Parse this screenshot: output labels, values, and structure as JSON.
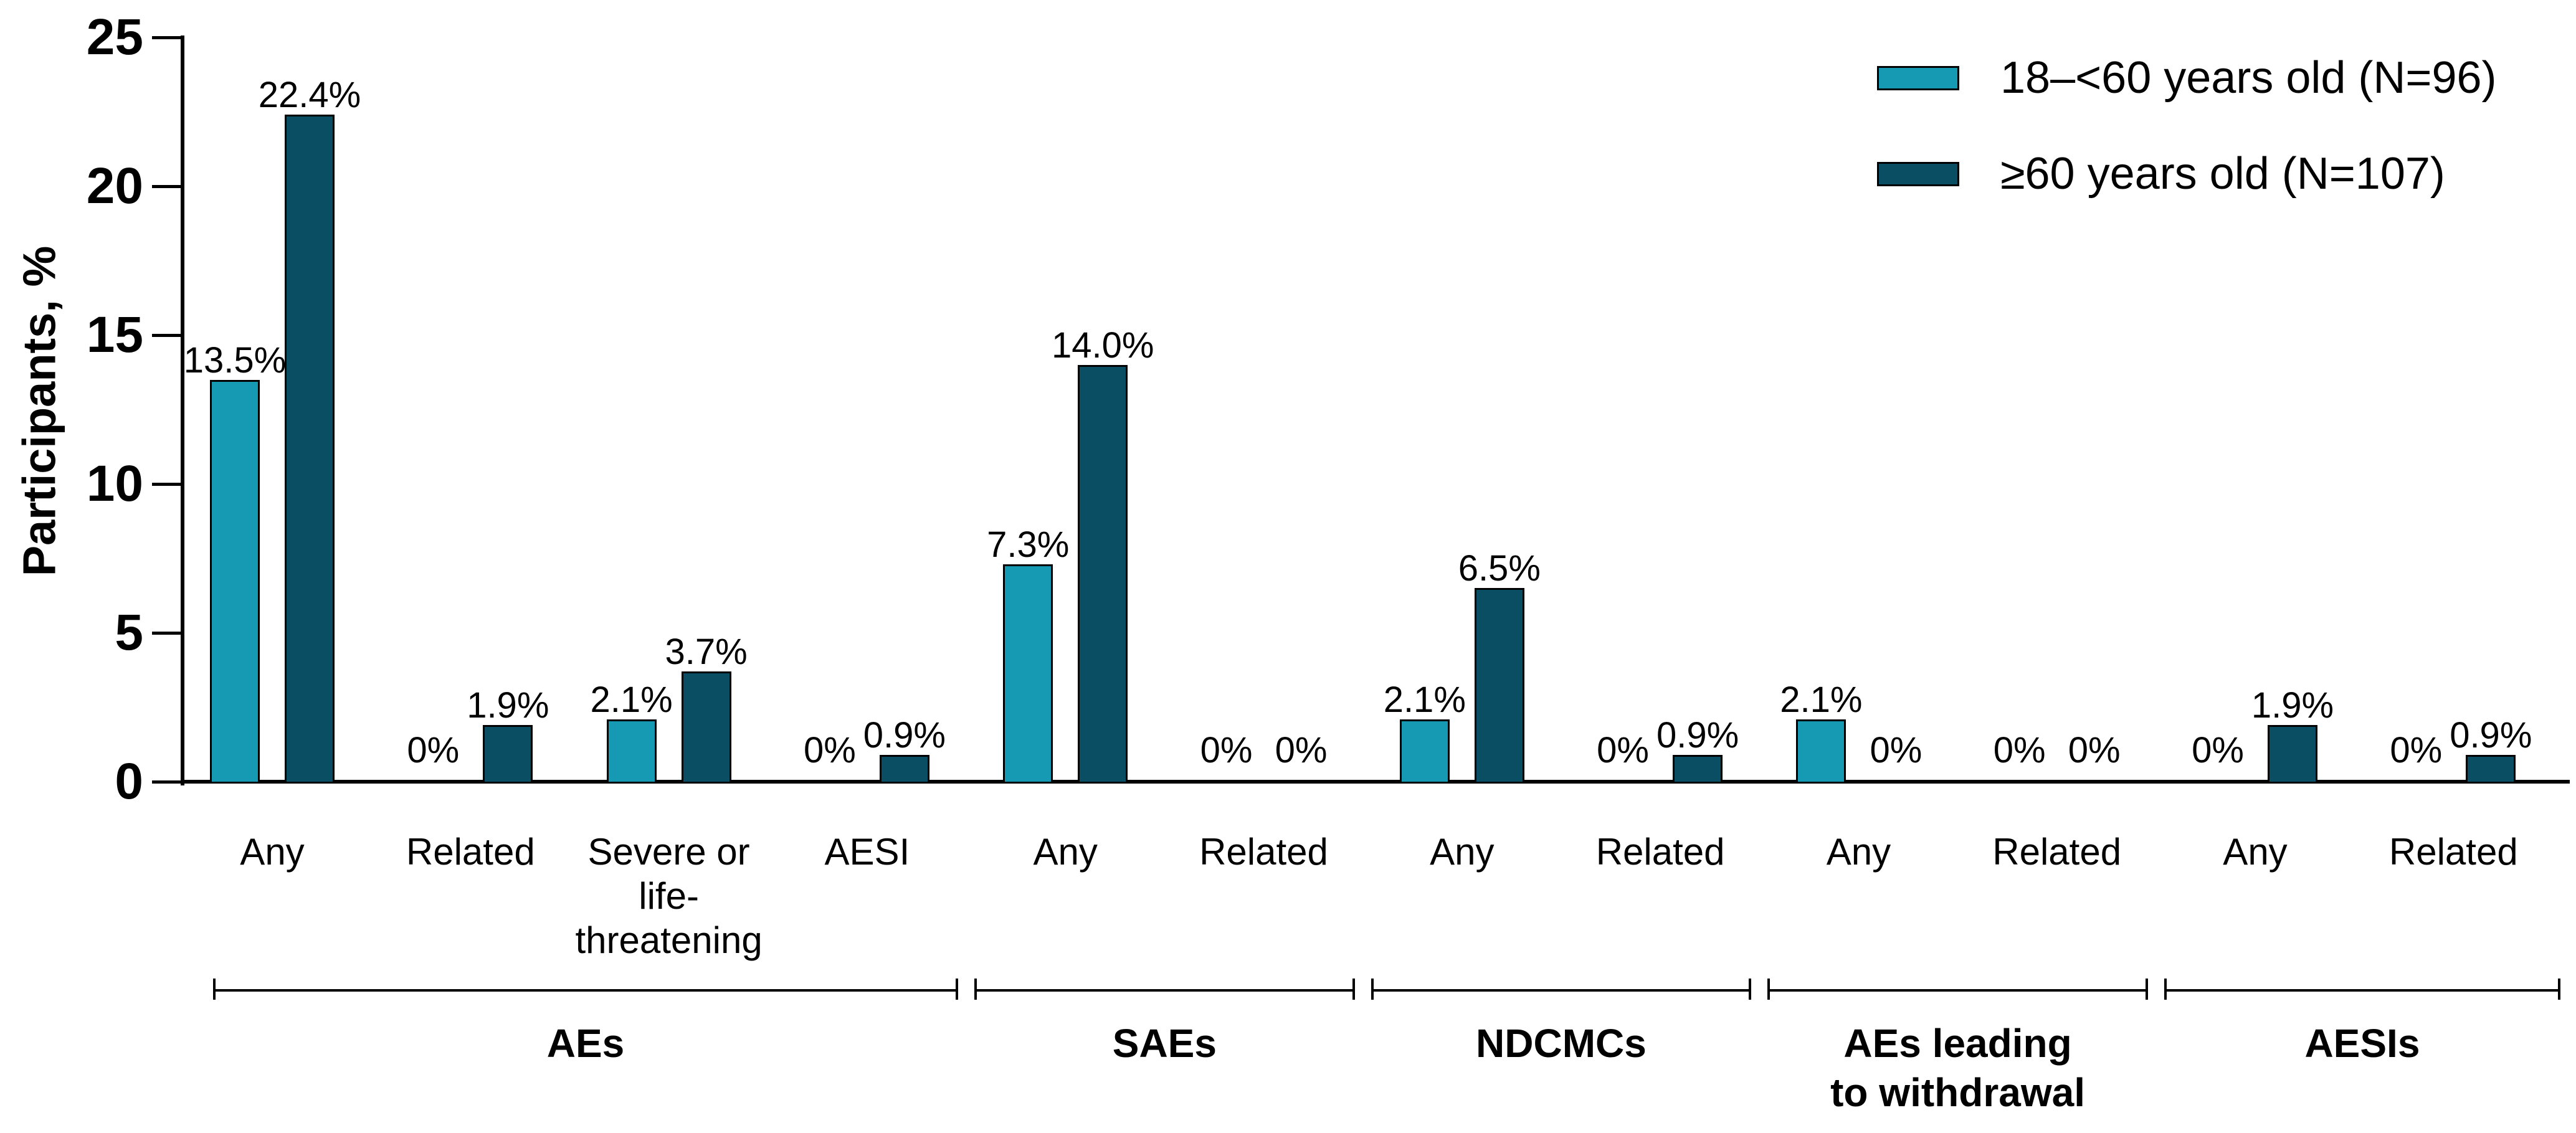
{
  "figure": {
    "background": "#ffffff",
    "text_color": "#000000",
    "axis_color": "#000000"
  },
  "chart_data": {
    "type": "bar",
    "title": "",
    "xlabel": "",
    "ylabel": "Participants, %",
    "ylim": [
      0,
      25
    ],
    "yticks": [
      0,
      5,
      10,
      15,
      20,
      25
    ],
    "grid": false,
    "legend_position": "top-right",
    "categories": [
      "Any",
      "Related",
      "Severe or\nlife-\nthreatening",
      "AESI",
      "Any",
      "Related",
      "Any",
      "Related",
      "Any",
      "Related",
      "Any",
      "Related"
    ],
    "groups": [
      {
        "label": "AEs",
        "first": 0,
        "last": 3
      },
      {
        "label": "SAEs",
        "first": 4,
        "last": 5
      },
      {
        "label": "NDCMCs",
        "first": 6,
        "last": 7
      },
      {
        "label": "AEs leading\nto withdrawal",
        "first": 8,
        "last": 9
      },
      {
        "label": "AESIs",
        "first": 10,
        "last": 11
      }
    ],
    "series": [
      {
        "name": "18–<60 years old (N=96)",
        "color": "#1699b2",
        "values": [
          13.5,
          0,
          2.1,
          0,
          7.3,
          0,
          2.1,
          0,
          2.1,
          0,
          0,
          0
        ],
        "labels": [
          "13.5%",
          "0%",
          "2.1%",
          "0%",
          "7.3%",
          "0%",
          "2.1%",
          "0%",
          "2.1%",
          "0%",
          "0%",
          "0%"
        ]
      },
      {
        "name": "≥60 years old (N=107)",
        "color": "#0a4e63",
        "values": [
          22.4,
          1.9,
          3.7,
          0.9,
          14.0,
          0,
          6.5,
          0.9,
          0,
          0,
          1.9,
          0.9
        ],
        "labels": [
          "22.4%",
          "1.9%",
          "3.7%",
          "0.9%",
          "14.0%",
          "0%",
          "6.5%",
          "0.9%",
          "0%",
          "0%",
          "1.9%",
          "0.9%"
        ]
      }
    ]
  }
}
